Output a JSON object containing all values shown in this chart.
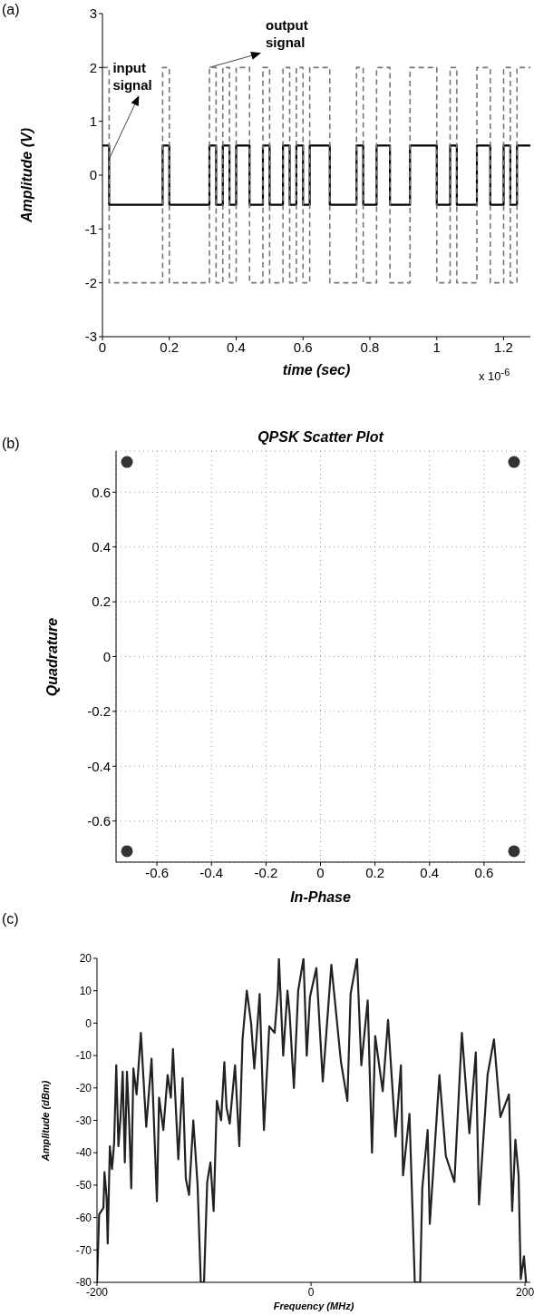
{
  "chart_data": [
    {
      "type": "step",
      "xlabel": "time (sec)",
      "ylabel": "Amplitude (V)",
      "annotations": [
        "(a)",
        {
          "text": "input signal",
          "x": 0.02,
          "y": 0.3
        },
        {
          "text": "output signal",
          "x": 0.32,
          "y": 2
        },
        "x 10$^{-6}$"
      ],
      "xlim": [
        0,
        1.28
      ],
      "ylim": [
        -3,
        3
      ],
      "xticks": [
        0,
        0.2,
        0.4,
        0.6,
        0.8,
        1,
        1.2
      ],
      "yticks": [
        -3,
        -2,
        -1,
        0,
        1,
        2,
        3
      ],
      "marker": "none",
      "series": [
        {
          "color": "#000000",
          "line_style": "solid",
          "x": [
            0,
            0.02,
            0.18,
            0.2,
            0.32,
            0.34,
            0.36,
            0.38,
            0.4,
            0.44,
            0.48,
            0.5,
            0.54,
            0.56,
            0.58,
            0.6,
            0.62,
            0.68,
            0.76,
            0.78,
            0.82,
            0.86,
            0.92,
            1.0,
            1.04,
            1.06,
            1.12,
            1.16,
            1.2,
            1.22,
            1.24,
            1.28
          ],
          "values": [
            0.55,
            -0.55,
            0.55,
            -0.55,
            0.55,
            -0.55,
            0.55,
            -0.55,
            0.55,
            -0.55,
            0.55,
            -0.55,
            0.55,
            -0.55,
            0.55,
            -0.55,
            0.55,
            -0.55,
            0.55,
            -0.55,
            0.55,
            -0.55,
            0.55,
            -0.55,
            0.55,
            -0.55,
            0.55,
            -0.55,
            0.55,
            -0.55,
            0.55,
            0.55
          ]
        },
        {
          "color": "#777777",
          "line_style": "dashed",
          "x": [
            0,
            0.02,
            0.18,
            0.2,
            0.32,
            0.34,
            0.36,
            0.38,
            0.4,
            0.44,
            0.48,
            0.5,
            0.54,
            0.56,
            0.58,
            0.6,
            0.62,
            0.68,
            0.76,
            0.78,
            0.82,
            0.86,
            0.92,
            1.0,
            1.04,
            1.06,
            1.12,
            1.16,
            1.2,
            1.22,
            1.24,
            1.28
          ],
          "values": [
            2,
            -2,
            2,
            -2,
            2,
            -2,
            2,
            -2,
            2,
            -2,
            2,
            -2,
            2,
            -2,
            2,
            -2,
            2,
            -2,
            2,
            -2,
            2,
            -2,
            2,
            -2,
            2,
            -2,
            2,
            -2,
            2,
            -2,
            2,
            2
          ]
        }
      ]
    },
    {
      "type": "scatter",
      "title": "QPSK Scatter Plot",
      "xlabel": "In-Phase",
      "ylabel": "Quadrature",
      "annotations": [
        "(b)"
      ],
      "xlim": [
        -0.75,
        0.75
      ],
      "ylim": [
        -0.75,
        0.75
      ],
      "xticks": [
        -0.6,
        -0.4,
        -0.2,
        0,
        0.2,
        0.4,
        0.6
      ],
      "yticks": [
        -0.6,
        -0.4,
        -0.2,
        0,
        0.2,
        0.4,
        0.6
      ],
      "grid": true,
      "marker": "circle",
      "series": [
        {
          "color": "#333333",
          "x": [
            -0.71,
            0.71,
            -0.71,
            0.71
          ],
          "values": [
            0.71,
            0.71,
            -0.71,
            -0.71
          ]
        }
      ]
    },
    {
      "type": "line",
      "xlabel": "Frequency (MHz)",
      "ylabel": "Amplitude (dBm)",
      "annotations": [
        "(c)"
      ],
      "xlim": [
        -200,
        205
      ],
      "ylim": [
        -80,
        20
      ],
      "xticks": [
        -200,
        0,
        200
      ],
      "yticks": [
        -80,
        -70,
        -60,
        -50,
        -40,
        -30,
        -20,
        -10,
        0,
        10,
        20
      ],
      "marker": "none",
      "line_style": "solid",
      "series": [
        {
          "color": "#222222",
          "x": [
            -200,
            -198,
            -194,
            -193,
            -191,
            -190,
            -188,
            -186,
            -184,
            -182,
            -180,
            -178,
            -176,
            -174,
            -172,
            -170,
            -168,
            -166,
            -163,
            -159,
            -154,
            -149,
            -144,
            -142,
            -138,
            -134,
            -131,
            -129,
            -124,
            -120,
            -117,
            -114,
            -110,
            -106,
            -103,
            -100,
            -97,
            -94,
            -91,
            -88,
            -84,
            -81,
            -79,
            -76,
            -71,
            -67,
            -64,
            -60,
            -56,
            -53,
            -48,
            -44,
            -39,
            -34,
            -31,
            -30,
            -26,
            -22,
            -20,
            -16,
            -12,
            -7,
            -4,
            -1,
            5,
            11,
            19,
            28,
            34,
            37,
            43,
            47,
            53,
            57,
            60,
            67,
            72,
            79,
            84,
            86,
            92,
            97,
            102,
            104,
            109,
            111,
            120,
            126,
            134,
            141,
            148,
            154,
            157,
            165,
            171,
            177,
            185,
            188,
            191,
            194,
            196,
            199,
            201
          ],
          "values": [
            -80,
            -59,
            -57,
            -46,
            -54,
            -68,
            -38,
            -45,
            -37,
            -13,
            -38,
            -29,
            -15,
            -43,
            -15,
            -30,
            -51,
            -14,
            -22,
            -3,
            -32,
            -11,
            -55,
            -23,
            -33,
            -16,
            -23,
            -8,
            -42,
            -17,
            -48,
            -53,
            -30,
            -50,
            -80,
            -80,
            -49,
            -43,
            -58,
            -24,
            -30,
            -12,
            -26,
            -31,
            -13,
            -38,
            -5,
            10,
            0,
            -14,
            9,
            -33,
            -1,
            -3,
            10,
            20,
            -10,
            10,
            3,
            -20,
            10,
            20,
            -10,
            8,
            17,
            -18,
            18,
            -12,
            -24,
            9,
            20,
            -13,
            7,
            -40,
            -4,
            -21,
            1,
            -35,
            -13,
            -47,
            -28,
            -80,
            -80,
            -51,
            -33,
            -62,
            -16,
            -41,
            -49,
            -3,
            -34,
            -9,
            -56,
            -16,
            -5,
            -29,
            -22,
            -58,
            -36,
            -47,
            -79,
            -72,
            -80
          ]
        }
      ]
    }
  ]
}
